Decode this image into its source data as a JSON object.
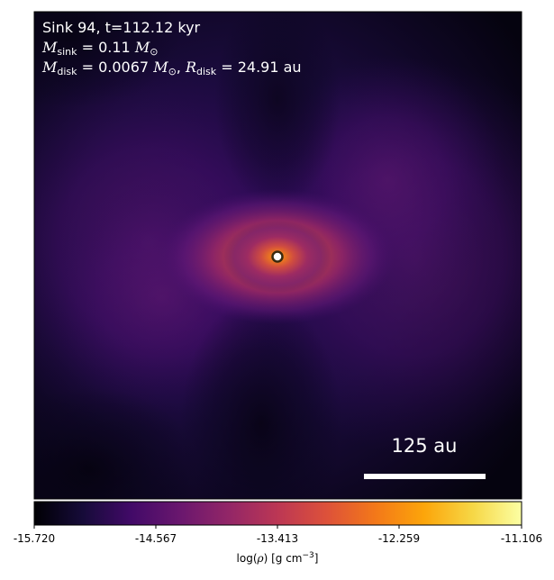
{
  "annotation": {
    "sink_title": "Sink 94, t=112.12 kyr",
    "msink_symbol": "M",
    "msink_sub": "sink",
    "msink_value": " = 0.11 ",
    "mdisk_symbol": "M",
    "mdisk_sub": "disk",
    "mdisk_value": " = 0.0067 ",
    "rdisk_symbol": "R",
    "rdisk_sub": "disk",
    "rdisk_value": " = 24.91 au",
    "solar_mass": "M",
    "solar_sub": "⊙",
    "separator": ", "
  },
  "scale_bar": {
    "label": "125 au"
  },
  "colorbar": {
    "colormap": "inferno",
    "ticks": [
      "-15.720",
      "-14.567",
      "-13.413",
      "-12.259",
      "-11.106"
    ],
    "label_prefix": "log(",
    "label_symbol": "ρ",
    "label_suffix": ") [g cm",
    "label_exp": "−3",
    "label_end": "]",
    "min": -15.72,
    "max": -11.106
  },
  "sink_marker": {
    "fill": "#ffffff",
    "stroke": "#3a2a10"
  }
}
